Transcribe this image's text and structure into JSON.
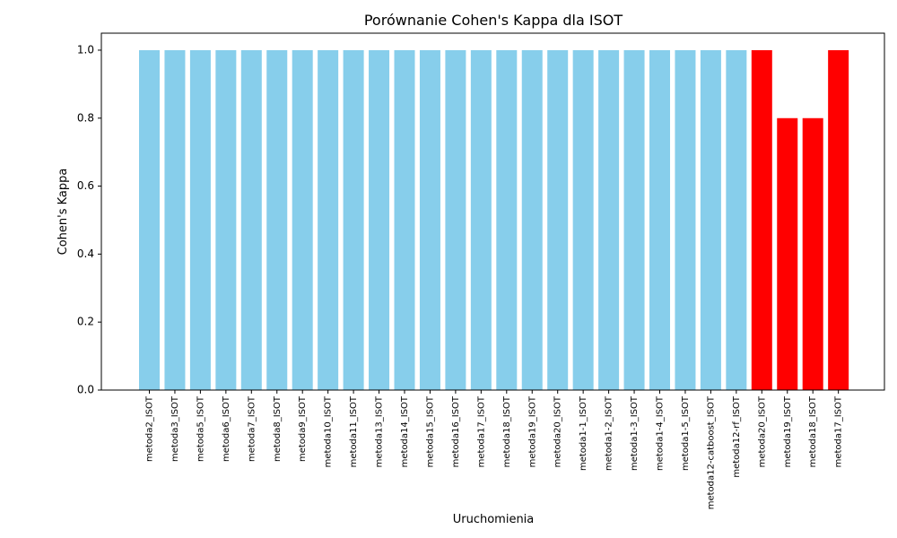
{
  "chart_data": {
    "type": "bar",
    "title": "Porównanie Cohen's Kappa dla ISOT",
    "xlabel": "Uruchomienia",
    "ylabel": "Cohen's Kappa",
    "ylim": [
      0,
      1.05
    ],
    "yticks": [
      "0.0",
      "0.2",
      "0.4",
      "0.6",
      "0.8",
      "1.0"
    ],
    "grid": false,
    "categories": [
      "metoda2_ISOT",
      "metoda3_ISOT",
      "metoda5_ISOT",
      "metoda6_ISOT",
      "metoda7_ISOT",
      "metoda8_ISOT",
      "metoda9_ISOT",
      "metoda10_ISOT",
      "metoda11_ISOT",
      "metoda13_ISOT",
      "metoda14_ISOT",
      "metoda15_ISOT",
      "metoda16_ISOT",
      "metoda17_ISOT",
      "metoda18_ISOT",
      "metoda19_ISOT",
      "metoda20_ISOT",
      "metoda1-1_ISOT",
      "metoda1-2_ISOT",
      "metoda1-3_ISOT",
      "metoda1-4_ISOT",
      "metoda1-5_ISOT",
      "metoda12-catboost_ISOT",
      "metoda12-rf_ISOT",
      "metoda20_ISOT",
      "metoda19_ISOT",
      "metoda18_ISOT",
      "metoda17_ISOT"
    ],
    "values": [
      1.0,
      1.0,
      1.0,
      1.0,
      1.0,
      1.0,
      1.0,
      1.0,
      1.0,
      1.0,
      1.0,
      1.0,
      1.0,
      1.0,
      1.0,
      1.0,
      1.0,
      1.0,
      1.0,
      1.0,
      1.0,
      1.0,
      1.0,
      1.0,
      1.0,
      0.8,
      0.8,
      1.0
    ],
    "bar_colors": [
      "#87ceeb",
      "#87ceeb",
      "#87ceeb",
      "#87ceeb",
      "#87ceeb",
      "#87ceeb",
      "#87ceeb",
      "#87ceeb",
      "#87ceeb",
      "#87ceeb",
      "#87ceeb",
      "#87ceeb",
      "#87ceeb",
      "#87ceeb",
      "#87ceeb",
      "#87ceeb",
      "#87ceeb",
      "#87ceeb",
      "#87ceeb",
      "#87ceeb",
      "#87ceeb",
      "#87ceeb",
      "#87ceeb",
      "#87ceeb",
      "#ff0000",
      "#ff0000",
      "#ff0000",
      "#ff0000"
    ]
  }
}
